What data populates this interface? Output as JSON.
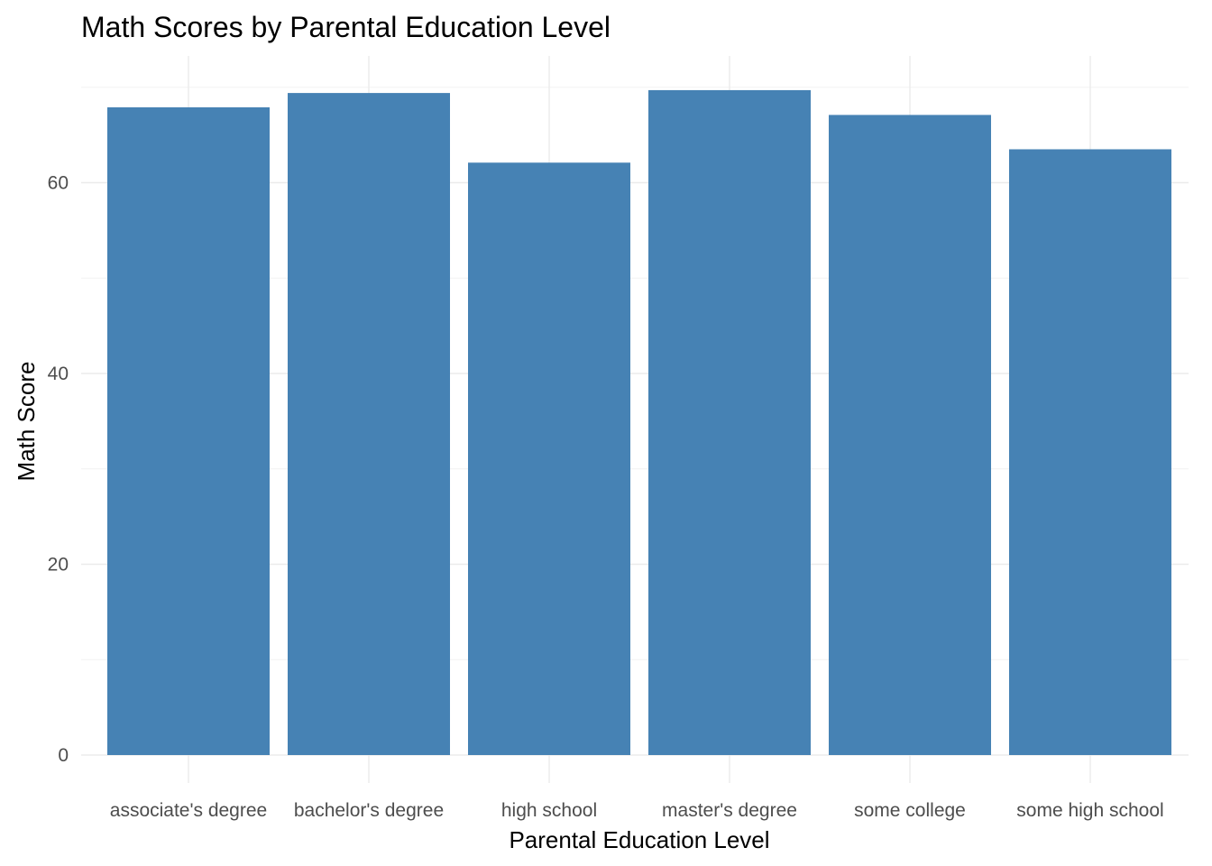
{
  "chart_data": {
    "type": "bar",
    "title": "Math Scores by Parental Education Level",
    "xlabel": "Parental Education Level",
    "ylabel": "Math Score",
    "categories": [
      "associate's degree",
      "bachelor's degree",
      "high school",
      "master's degree",
      "some college",
      "some high school"
    ],
    "values": [
      67.9,
      69.4,
      62.1,
      69.7,
      67.1,
      63.5
    ],
    "ylim": [
      0,
      73
    ],
    "yticks": [
      0,
      20,
      40,
      60
    ],
    "grid": true,
    "legend": "none",
    "bar_color": "#4682B4"
  }
}
